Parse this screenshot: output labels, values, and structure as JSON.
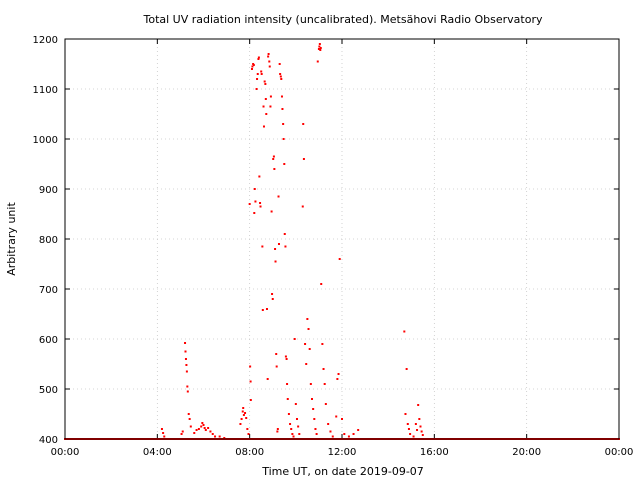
{
  "chart_data": {
    "type": "scatter",
    "title": "Total UV radiation intensity (uncalibrated). Metsähovi Radio Observatory",
    "xlabel": "Time UT, on date 2019-09-07",
    "ylabel": "Arbitrary unit",
    "xlim": [
      0,
      24
    ],
    "ylim": [
      400,
      1200
    ],
    "xticks": [
      0,
      4,
      8,
      12,
      16,
      20,
      24
    ],
    "xtick_labels": [
      "00:00",
      "04:00",
      "08:00",
      "12:00",
      "16:00",
      "20:00",
      "00:00"
    ],
    "yticks": [
      400,
      500,
      600,
      700,
      800,
      900,
      1000,
      1100,
      1200
    ],
    "ytick_labels": [
      "400",
      "500",
      "600",
      "700",
      "800",
      "900",
      "1000",
      "1100",
      "1200"
    ],
    "grid": true,
    "marker_color": "#ff0000",
    "series": [
      {
        "x_unit": "hours UT",
        "points": [
          [
            4.2,
            420
          ],
          [
            4.25,
            412
          ],
          [
            4.3,
            405
          ],
          [
            5.05,
            410
          ],
          [
            5.1,
            415
          ],
          [
            5.2,
            592
          ],
          [
            5.22,
            575
          ],
          [
            5.24,
            560
          ],
          [
            5.26,
            548
          ],
          [
            5.28,
            535
          ],
          [
            5.3,
            505
          ],
          [
            5.32,
            495
          ],
          [
            5.36,
            450
          ],
          [
            5.4,
            440
          ],
          [
            5.45,
            425
          ],
          [
            5.6,
            412
          ],
          [
            5.7,
            418
          ],
          [
            5.8,
            420
          ],
          [
            5.9,
            425
          ],
          [
            5.95,
            432
          ],
          [
            6.0,
            428
          ],
          [
            6.05,
            422
          ],
          [
            6.1,
            418
          ],
          [
            6.2,
            422
          ],
          [
            6.3,
            415
          ],
          [
            6.4,
            410
          ],
          [
            6.5,
            405
          ],
          [
            6.7,
            405
          ],
          [
            6.9,
            402
          ],
          [
            7.6,
            430
          ],
          [
            7.65,
            440
          ],
          [
            7.7,
            455
          ],
          [
            7.72,
            462
          ],
          [
            7.75,
            448
          ],
          [
            7.8,
            452
          ],
          [
            7.85,
            442
          ],
          [
            7.9,
            420
          ],
          [
            7.95,
            410
          ],
          [
            8.0,
            870
          ],
          [
            8.02,
            545
          ],
          [
            8.04,
            515
          ],
          [
            8.05,
            478
          ],
          [
            8.1,
            1140
          ],
          [
            8.12,
            1145
          ],
          [
            8.15,
            1150
          ],
          [
            8.18,
            1148
          ],
          [
            8.2,
            852
          ],
          [
            8.22,
            900
          ],
          [
            8.25,
            875
          ],
          [
            8.3,
            1100
          ],
          [
            8.32,
            1120
          ],
          [
            8.35,
            1130
          ],
          [
            8.38,
            1160
          ],
          [
            8.4,
            1163
          ],
          [
            8.42,
            925
          ],
          [
            8.45,
            872
          ],
          [
            8.47,
            865
          ],
          [
            8.5,
            1135
          ],
          [
            8.52,
            1130
          ],
          [
            8.55,
            785
          ],
          [
            8.57,
            658
          ],
          [
            8.6,
            1065
          ],
          [
            8.62,
            1025
          ],
          [
            8.65,
            1115
          ],
          [
            8.68,
            1110
          ],
          [
            8.7,
            1080
          ],
          [
            8.72,
            1050
          ],
          [
            8.75,
            660
          ],
          [
            8.78,
            520
          ],
          [
            8.8,
            1165
          ],
          [
            8.82,
            1170
          ],
          [
            8.85,
            1155
          ],
          [
            8.87,
            1145
          ],
          [
            8.9,
            1065
          ],
          [
            8.92,
            1085
          ],
          [
            8.95,
            855
          ],
          [
            8.97,
            690
          ],
          [
            9.0,
            680
          ],
          [
            9.02,
            960
          ],
          [
            9.05,
            965
          ],
          [
            9.07,
            940
          ],
          [
            9.1,
            780
          ],
          [
            9.12,
            755
          ],
          [
            9.15,
            570
          ],
          [
            9.17,
            545
          ],
          [
            9.2,
            415
          ],
          [
            9.22,
            420
          ],
          [
            9.25,
            885
          ],
          [
            9.27,
            790
          ],
          [
            9.3,
            1150
          ],
          [
            9.32,
            1130
          ],
          [
            9.35,
            1125
          ],
          [
            9.37,
            1120
          ],
          [
            9.4,
            1085
          ],
          [
            9.42,
            1060
          ],
          [
            9.45,
            1030
          ],
          [
            9.47,
            1000
          ],
          [
            9.5,
            950
          ],
          [
            9.52,
            810
          ],
          [
            9.55,
            785
          ],
          [
            9.57,
            565
          ],
          [
            9.6,
            560
          ],
          [
            9.62,
            510
          ],
          [
            9.65,
            480
          ],
          [
            9.7,
            450
          ],
          [
            9.75,
            430
          ],
          [
            9.8,
            420
          ],
          [
            9.85,
            410
          ],
          [
            9.9,
            405
          ],
          [
            9.95,
            600
          ],
          [
            10.0,
            470
          ],
          [
            10.05,
            440
          ],
          [
            10.1,
            425
          ],
          [
            10.15,
            410
          ],
          [
            10.2,
            400
          ],
          [
            10.3,
            865
          ],
          [
            10.32,
            1030
          ],
          [
            10.35,
            960
          ],
          [
            10.4,
            590
          ],
          [
            10.45,
            550
          ],
          [
            10.5,
            640
          ],
          [
            10.55,
            620
          ],
          [
            10.6,
            580
          ],
          [
            10.65,
            510
          ],
          [
            10.7,
            480
          ],
          [
            10.75,
            460
          ],
          [
            10.8,
            440
          ],
          [
            10.85,
            420
          ],
          [
            10.9,
            410
          ],
          [
            10.95,
            1155
          ],
          [
            11.0,
            1180
          ],
          [
            11.02,
            1185
          ],
          [
            11.04,
            1190
          ],
          [
            11.06,
            1178
          ],
          [
            11.08,
            1182
          ],
          [
            11.1,
            710
          ],
          [
            11.15,
            590
          ],
          [
            11.2,
            540
          ],
          [
            11.25,
            510
          ],
          [
            11.3,
            470
          ],
          [
            11.4,
            430
          ],
          [
            11.5,
            415
          ],
          [
            11.6,
            405
          ],
          [
            11.75,
            445
          ],
          [
            11.8,
            520
          ],
          [
            11.85,
            530
          ],
          [
            11.9,
            760
          ],
          [
            12.0,
            440
          ],
          [
            12.1,
            410
          ],
          [
            12.3,
            405
          ],
          [
            12.5,
            410
          ],
          [
            12.7,
            418
          ],
          [
            14.7,
            615
          ],
          [
            14.75,
            450
          ],
          [
            14.8,
            540
          ],
          [
            14.85,
            430
          ],
          [
            14.9,
            420
          ],
          [
            14.95,
            410
          ],
          [
            15.1,
            405
          ],
          [
            15.2,
            430
          ],
          [
            15.25,
            418
          ],
          [
            15.3,
            468
          ],
          [
            15.35,
            440
          ],
          [
            15.4,
            425
          ],
          [
            15.45,
            415
          ],
          [
            15.5,
            408
          ]
        ]
      }
    ]
  }
}
